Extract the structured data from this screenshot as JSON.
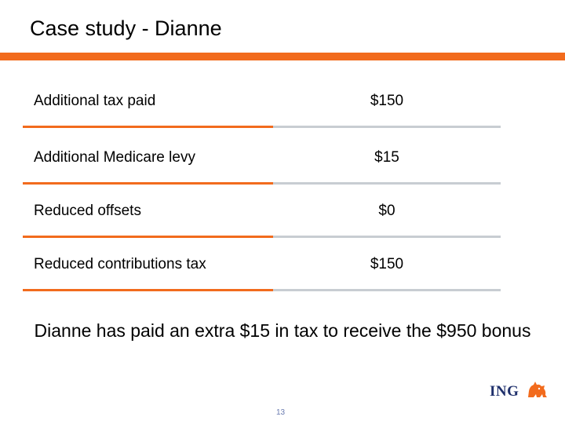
{
  "slide": {
    "title": "Case study - Dianne",
    "rows": [
      {
        "label": "Additional tax paid",
        "value": "$150"
      },
      {
        "label": "Additional Medicare levy",
        "value": "$15"
      },
      {
        "label": "Reduced offsets",
        "value": "$0"
      },
      {
        "label": "Reduced contributions tax",
        "value": "$150"
      }
    ],
    "summary": "Dianne has paid an extra $15 in tax to receive the $950 bonus",
    "logo_text": "ING",
    "page_number": "13"
  },
  "colors": {
    "accent": "#f26b1d",
    "divider_grey": "#c8cdd2",
    "logo_navy": "#1e2f6b",
    "logo_orange": "#f26b1d"
  },
  "icons": {
    "logo": "ing-lion-icon"
  }
}
